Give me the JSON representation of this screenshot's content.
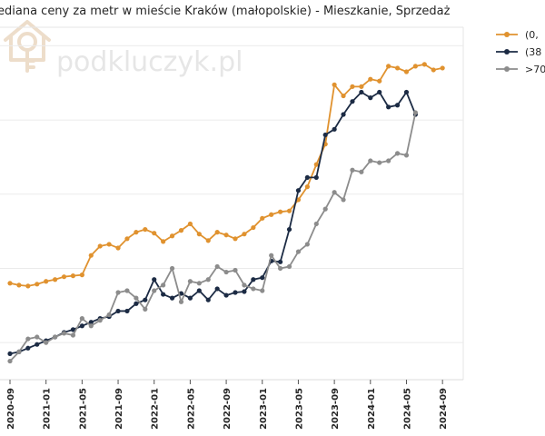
{
  "watermark": {
    "text": "podkluczyk.pl"
  },
  "chart_data": {
    "type": "line",
    "title": "ediana ceny za metr w mieście Kraków (małopolskie) - Mieszkanie, Sprzedaż",
    "xlabel": "",
    "ylabel": "",
    "grid": "horizontal",
    "legend_position": "top-right",
    "x_start": "2020-09",
    "x_ticks": [
      "2020-09",
      "2021-01",
      "2021-05",
      "2021-09",
      "2022-01",
      "2022-05",
      "2022-09",
      "2023-01",
      "2023-05",
      "2023-09",
      "2024-01",
      "2024-05",
      "2024-09"
    ],
    "series": [
      {
        "name": "(0,",
        "color": "#e0922f",
        "values": [
          92,
          91,
          90.5,
          91.5,
          93,
          94,
          95.5,
          96,
          96.5,
          107,
          112,
          113,
          111,
          116,
          119.5,
          121,
          119,
          114.5,
          117.5,
          120.5,
          124,
          118.5,
          115,
          119.5,
          118,
          116,
          118.5,
          122,
          127,
          129,
          130.5,
          131,
          137,
          144,
          156,
          167,
          199,
          193,
          198,
          198,
          202,
          201,
          209,
          208,
          206,
          209,
          210,
          207,
          208
        ]
      },
      {
        "name": "(38",
        "color": "#1c2b44",
        "values": [
          54,
          55,
          57,
          59,
          61,
          63,
          65.5,
          67,
          69,
          71,
          73,
          74,
          77,
          77,
          81,
          83,
          94,
          86,
          84,
          86.5,
          84,
          88,
          83,
          89,
          85.5,
          87,
          87.5,
          94,
          95,
          104,
          103.5,
          121,
          142,
          149,
          149,
          172,
          175,
          183,
          190,
          195,
          192,
          195,
          187,
          188,
          195,
          183
        ]
      },
      {
        "name": ">70",
        "color": "#8c8c8c",
        "values": [
          50,
          55,
          62,
          63,
          60,
          63,
          65,
          64,
          73,
          69,
          72,
          75,
          87,
          88,
          84,
          78,
          88,
          91,
          100,
          82,
          93,
          92,
          94,
          101,
          98,
          99,
          91,
          89,
          88,
          107,
          100,
          101,
          109,
          113,
          124,
          132,
          141,
          137,
          153,
          152,
          158,
          157,
          158,
          162,
          161,
          184
        ]
      }
    ],
    "ylim": [
      40,
      230
    ]
  }
}
